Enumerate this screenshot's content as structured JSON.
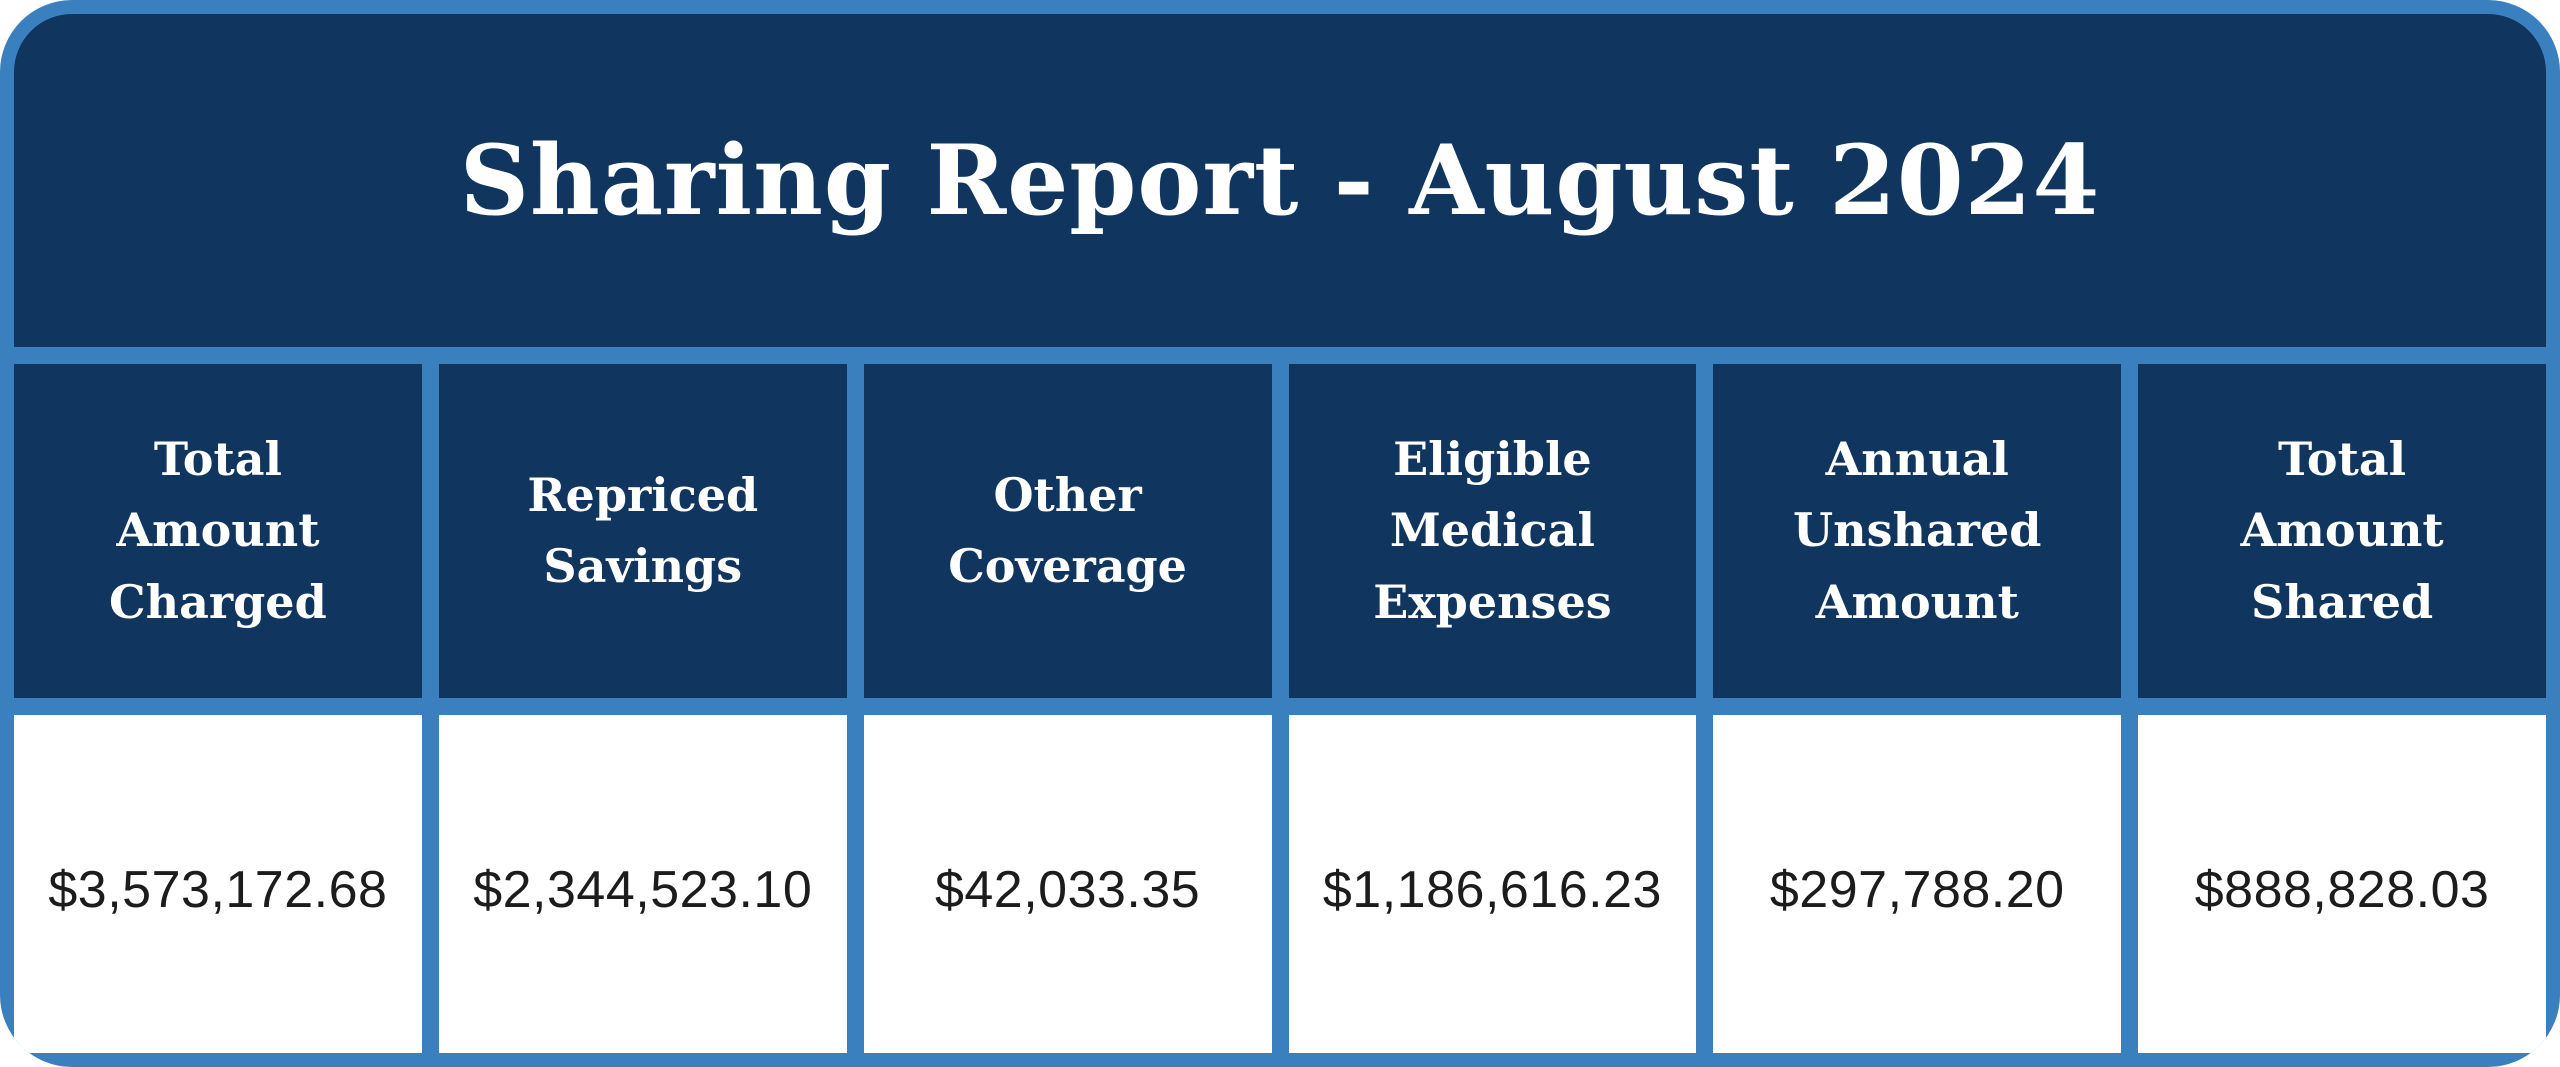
{
  "title": "Sharing Report - August 2024",
  "colors": {
    "navy": "#10365f",
    "blue": "#3a80bf",
    "text_dark": "#1c1c1c",
    "white": "#ffffff"
  },
  "table": {
    "columns": [
      {
        "label": "Total Amount Charged",
        "value": "$3,573,172.68"
      },
      {
        "label": "Repriced Savings",
        "value": "$2,344,523.10"
      },
      {
        "label": "Other Coverage",
        "value": "$42,033.35"
      },
      {
        "label": "Eligible Medical Expenses",
        "value": "$1,186,616.23"
      },
      {
        "label": "Annual Unshared Amount",
        "value": "$297,788.20"
      },
      {
        "label": "Total Amount Shared",
        "value": "$888,828.03"
      }
    ]
  }
}
